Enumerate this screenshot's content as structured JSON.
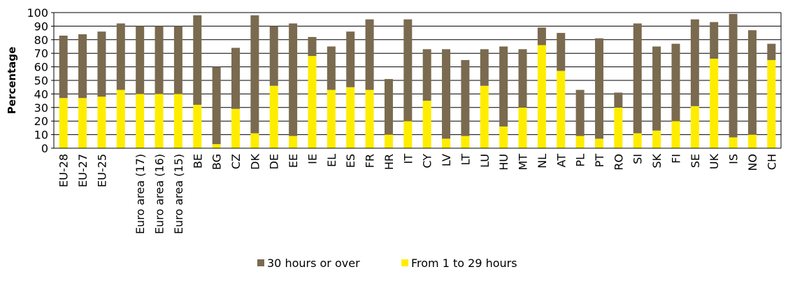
{
  "chart_data": {
    "type": "bar",
    "stacked": true,
    "ylabel": "Percentage",
    "xlabel": "",
    "ylim": [
      0,
      100
    ],
    "yticks": [
      0,
      10,
      20,
      30,
      40,
      50,
      60,
      70,
      80,
      90,
      100
    ],
    "grid": "horizontal",
    "legend_position": "bottom",
    "categories": [
      "EU-28",
      "EU-27",
      "EU-25",
      "",
      "Euro area (17)",
      "Euro area (16)",
      "Euro area (15)",
      "BE",
      "BG",
      "CZ",
      "DK",
      "DE",
      "EE",
      "IE",
      "EL",
      "ES",
      "FR",
      "HR",
      "IT",
      "CY",
      "LV",
      "LT",
      "LU",
      "HU",
      "MT",
      "NL",
      "AT",
      "PL",
      "PT",
      "RO",
      "SI",
      "SK",
      "FI",
      "SE",
      "UK",
      "IS",
      "NO",
      "CH"
    ],
    "series": [
      {
        "name": "30 hours or over",
        "color": "#7a6a4f",
        "values": [
          46,
          47,
          48,
          49,
          50,
          50,
          50,
          66,
          57,
          45,
          87,
          44,
          83,
          14,
          32,
          41,
          52,
          41,
          75,
          38,
          66,
          56,
          27,
          59,
          43,
          13,
          28,
          34,
          74,
          11,
          81,
          62,
          57,
          64,
          27,
          91,
          77,
          12
        ]
      },
      {
        "name": "From 1 to 29 hours",
        "color": "#ffed00",
        "values": [
          37,
          37,
          38,
          43,
          40,
          40,
          40,
          32,
          3,
          29,
          11,
          46,
          9,
          68,
          43,
          45,
          43,
          10,
          20,
          35,
          7,
          9,
          46,
          16,
          30,
          76,
          57,
          9,
          7,
          30,
          11,
          13,
          20,
          31,
          66,
          8,
          10,
          65
        ]
      }
    ]
  }
}
